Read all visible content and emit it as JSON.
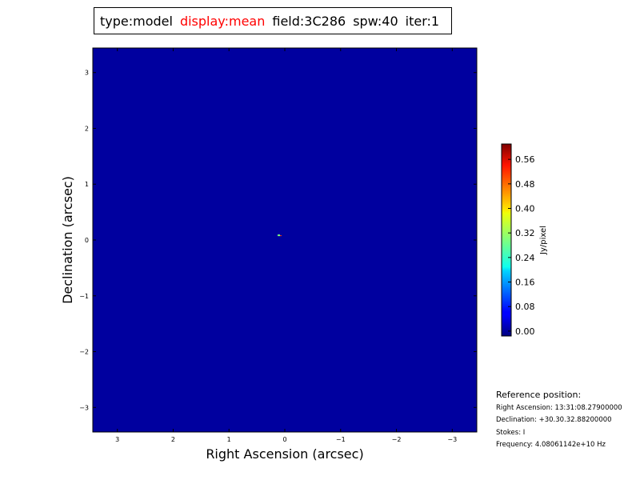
{
  "title": {
    "type": "type:model",
    "display": "display:mean",
    "field": "field:3C286",
    "spw": "spw:40",
    "iter": "iter:1"
  },
  "chart_data": {
    "type": "heatmap",
    "xlabel": "Right Ascension (arcsec)",
    "ylabel": "Declination (arcsec)",
    "xlim": [
      3.44,
      -3.44
    ],
    "ylim": [
      -3.44,
      3.44
    ],
    "xticks": [
      3,
      2,
      1,
      0,
      -1,
      -2,
      -3
    ],
    "xtick_labels": [
      "3",
      "2",
      "1",
      "0",
      "−1",
      "−2",
      "−3"
    ],
    "yticks": [
      3,
      2,
      1,
      0,
      -1,
      -2,
      -3
    ],
    "ytick_labels": [
      "3",
      "2",
      "1",
      "0",
      "−1",
      "−2",
      "−3"
    ],
    "colormap": "jet",
    "background_value": 0.0,
    "background_color": "#00009f",
    "source": {
      "ra": 0.1,
      "dec": 0.07,
      "peak_color": "#7fff7f"
    },
    "colorbar": {
      "label": "Jy/pixel",
      "range": [
        -0.016,
        0.61
      ],
      "ticks": [
        0.0,
        0.08,
        0.16,
        0.24,
        0.32,
        0.4,
        0.48,
        0.56
      ],
      "tick_labels": [
        "0.00",
        "0.08",
        "0.16",
        "0.24",
        "0.32",
        "0.40",
        "0.48",
        "0.56"
      ]
    }
  },
  "reference": {
    "header": "Reference position:",
    "ra": "Right Ascension: 13:31:08.27900000",
    "dec": "Declination: +30.30.32.88200000",
    "stokes": "Stokes: I",
    "freq": "Frequency: 4.08061142e+10 Hz"
  }
}
